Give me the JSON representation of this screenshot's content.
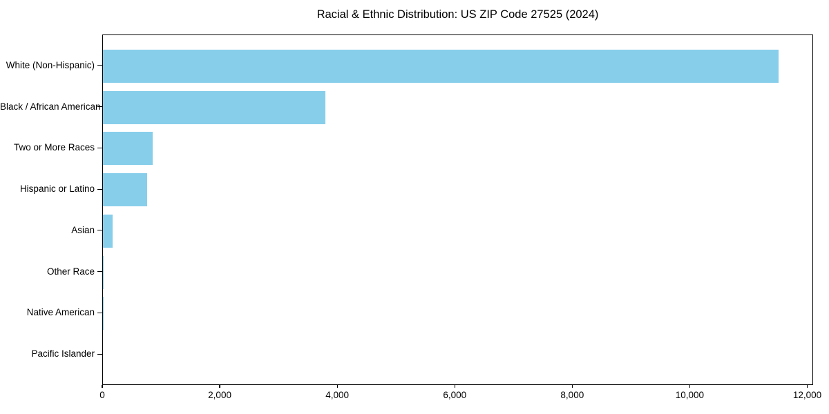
{
  "page": {
    "background": "#ffffff"
  },
  "chart_data": {
    "type": "bar",
    "orientation": "horizontal",
    "title": "Racial & Ethnic Distribution: US ZIP Code 27525 (2024)",
    "xlabel": "",
    "ylabel": "",
    "categories": [
      "White (Non-Hispanic)",
      "Black / African American",
      "Two or More Races",
      "Hispanic or Latino",
      "Asian",
      "Other Race",
      "Native American",
      "Pacific Islander"
    ],
    "values": [
      11520,
      3795,
      850,
      755,
      170,
      15,
      5,
      0
    ],
    "xlim": [
      0,
      12100
    ],
    "x_ticks": [
      0,
      2000,
      4000,
      6000,
      8000,
      10000,
      12000
    ],
    "x_tick_labels": [
      "0",
      "2,000",
      "4,000",
      "6,000",
      "8,000",
      "10,000",
      "12,000"
    ],
    "bar_color": "#87CEEB",
    "axis_color": "#000000",
    "grid": false,
    "legend": null
  }
}
